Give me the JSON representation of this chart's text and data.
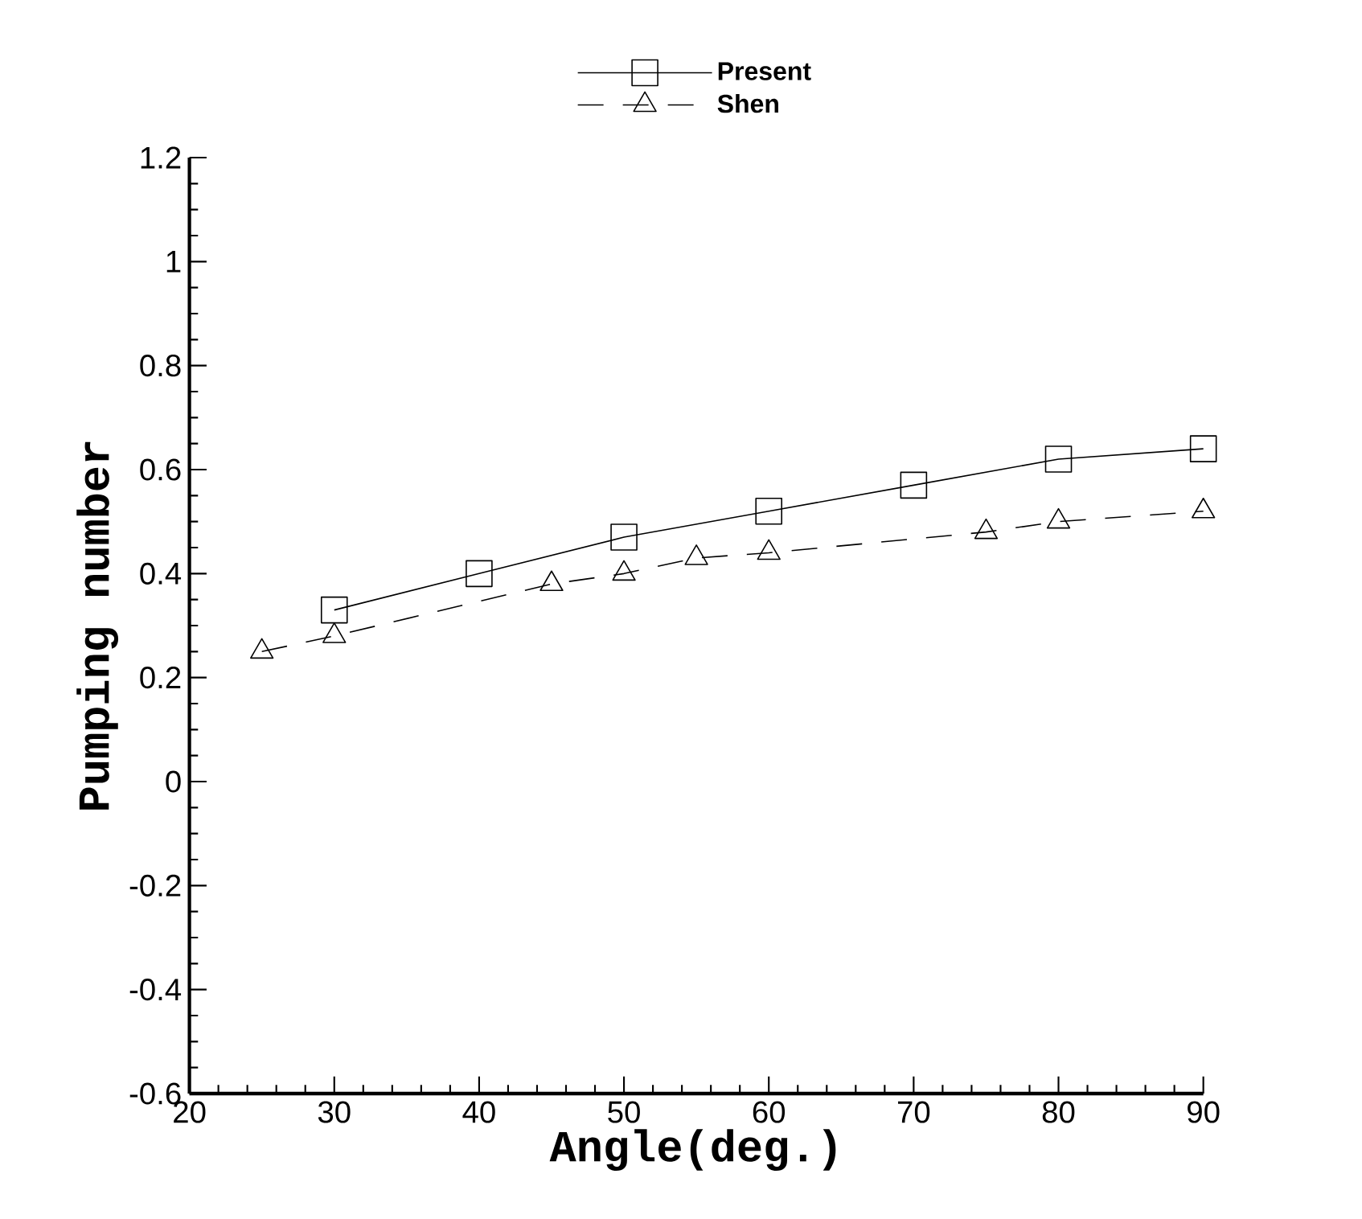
{
  "chart_data": {
    "type": "line",
    "xlabel": "Angle(deg.)",
    "ylabel": "Pumping number",
    "xlim": [
      20,
      90
    ],
    "ylim": [
      -0.6,
      1.2
    ],
    "xticks": [
      20,
      30,
      40,
      50,
      60,
      70,
      80,
      90
    ],
    "yticks": [
      -0.6,
      -0.4,
      -0.2,
      0,
      0.2,
      0.4,
      0.6,
      0.8,
      1,
      1.2
    ],
    "legend": "top",
    "series": [
      {
        "name": "Present",
        "color": "#000000",
        "marker": "square",
        "line_style": "solid",
        "x": [
          30,
          40,
          50,
          60,
          70,
          80,
          90
        ],
        "values": [
          0.33,
          0.4,
          0.47,
          0.52,
          0.57,
          0.62,
          0.64
        ]
      },
      {
        "name": "Shen",
        "color": "#000000",
        "marker": "triangle",
        "line_style": "dashed",
        "x": [
          25,
          30,
          45,
          50,
          55,
          60,
          75,
          80,
          90
        ],
        "values": [
          0.25,
          0.28,
          0.38,
          0.4,
          0.43,
          0.44,
          0.48,
          0.5,
          0.52
        ]
      }
    ]
  }
}
